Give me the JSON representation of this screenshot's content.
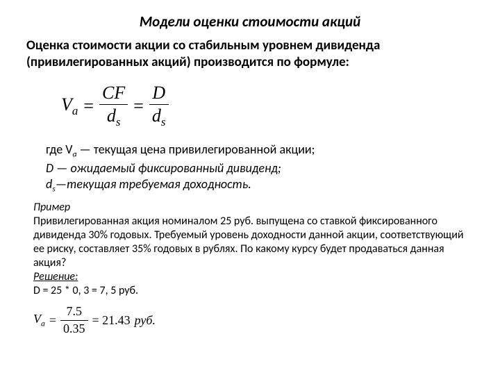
{
  "title": "Модели оценки стоимости акций",
  "subtitle": "Оценка стоимости акции со стабильным уровнем дивиденда (привилегированных акций) производится по формуле:",
  "formula1": {
    "lhs_var": "V",
    "lhs_sub": "a",
    "eq": "=",
    "frac1_num": "CF",
    "frac1_den_var": "d",
    "frac1_den_sub": "s",
    "frac2_num": "D",
    "frac2_den_var": "d",
    "frac2_den_sub": "s"
  },
  "defs": {
    "d1_pre": "где V",
    "d1_sub": "a",
    "d1_post": " — текущая цена привилегированной акции;",
    "d2": "D — ожидаемый фиксированный дивиденд;",
    "d3_pre": "d",
    "d3_sub": "s",
    "d3_post": "—текущая требуемая доходность."
  },
  "example": {
    "label": "Пример",
    "body": "Привилегированная акция номиналом 25 руб. выпущена со ставкой фиксированного дивиденда 30% годовых. Требуемый уровень доходности данной акции, соответствующий ее риску, составляет 35% годовых в рублях. По какому курсу будет продаваться данная акция?",
    "solution_label": "Решение:",
    "solution_line": "D = 25 * 0, 3 = 7, 5 руб."
  },
  "formula2": {
    "lhs_var": "V",
    "lhs_sub": "a",
    "eq": "=",
    "num": "7.5",
    "den": "0.35",
    "result": "= 21.43",
    "unit": "руб."
  }
}
